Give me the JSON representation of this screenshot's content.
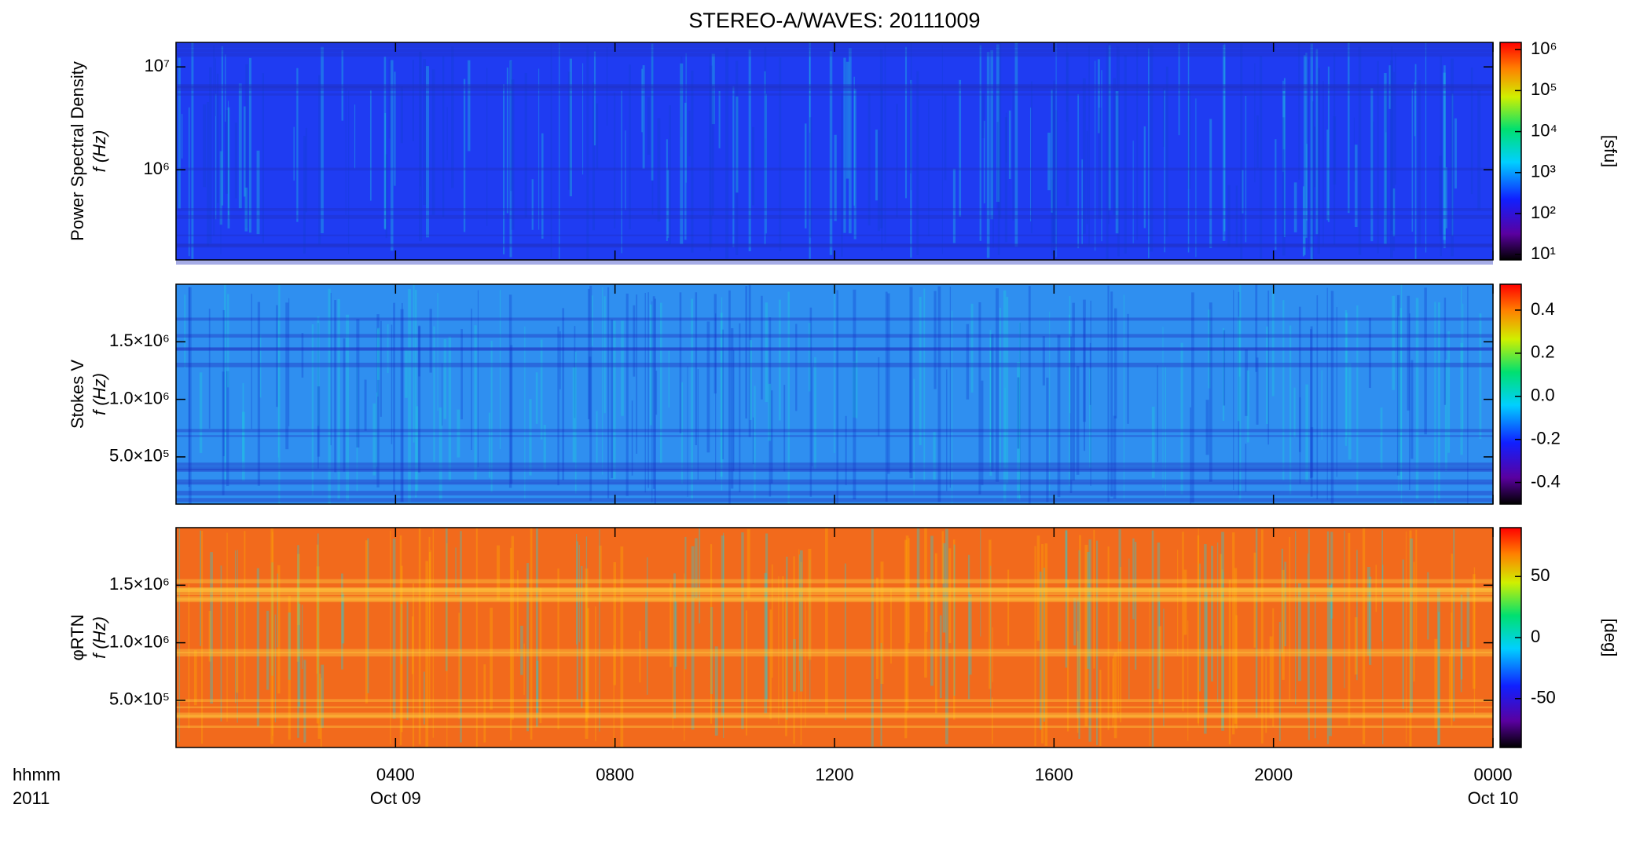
{
  "chart_data": [
    {
      "type": "heatmap",
      "title": "STEREO-A/WAVES: 20111009",
      "ylabel": [
        "Power Spectral Density",
        "f (Hz)"
      ],
      "ylog": true,
      "ylim": [
        133000,
        17300000
      ],
      "yticks": [
        {
          "value": 1000000,
          "label": "10⁶"
        },
        {
          "value": 10000000,
          "label": "10⁷"
        }
      ],
      "color": "#1f3cf2",
      "clog": true,
      "clim": [
        7.4,
        1500000
      ],
      "cticks": [
        {
          "value": 10,
          "label": "10¹"
        },
        {
          "value": 100,
          "label": "10²"
        },
        {
          "value": 1000,
          "label": "10³"
        },
        {
          "value": 10000,
          "label": "10⁴"
        },
        {
          "value": 100000,
          "label": "10⁵"
        },
        {
          "value": 1000000,
          "label": "10⁶"
        }
      ],
      "clabel": "[sfu]"
    },
    {
      "type": "heatmap",
      "ylabel": [
        "Stokes V",
        "f (Hz)"
      ],
      "ylog": false,
      "ylim": [
        90000,
        2000000
      ],
      "yticks": [
        {
          "value": 500000,
          "label": "5.0×10⁵"
        },
        {
          "value": 1000000,
          "label": "1.0×10⁶"
        },
        {
          "value": 1500000,
          "label": "1.5×10⁶"
        }
      ],
      "color": "#2f8ff0",
      "clog": false,
      "clim": [
        -0.5,
        0.52
      ],
      "cticks": [
        -0.4,
        -0.2,
        {
          "value": 0,
          "label": "0.0"
        },
        0.2,
        0.4
      ]
    },
    {
      "type": "heatmap",
      "ylabel": [
        "φRTN",
        "f (Hz)"
      ],
      "ylog": false,
      "ylim": [
        90000,
        2000000
      ],
      "yticks": [
        {
          "value": 500000,
          "label": "5.0×10⁵"
        },
        {
          "value": 1000000,
          "label": "1.0×10⁶"
        },
        {
          "value": 1500000,
          "label": "1.5×10⁶"
        }
      ],
      "color": "#f26a1c",
      "clog": false,
      "clim": [
        -90,
        90
      ],
      "cticks": [
        -50,
        0,
        50
      ],
      "clabel": "[deg]",
      "xlabel": [
        "hhmm",
        "2011"
      ],
      "xlim": [
        0,
        24
      ],
      "xticks": [
        {
          "value": 4,
          "label": "0400"
        },
        {
          "value": 8,
          "label": "0800"
        },
        {
          "value": 12,
          "label": "1200"
        },
        {
          "value": 16,
          "label": "1600"
        },
        {
          "value": 20,
          "label": "2000"
        },
        {
          "value": 24,
          "label": "0000"
        }
      ],
      "date_labels": [
        {
          "value": 4,
          "label": "Oct 09"
        },
        {
          "value": 24,
          "label": "Oct 10"
        }
      ]
    }
  ]
}
